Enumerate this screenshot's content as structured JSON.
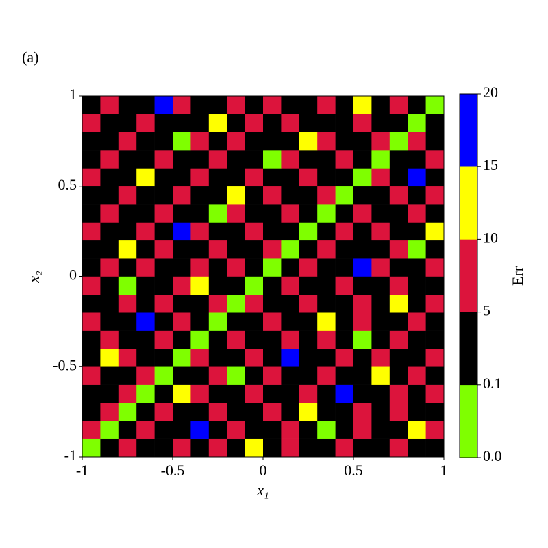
{
  "chart_data": {
    "type": "heatmap",
    "panel_label": "(a)",
    "xlabel": "x₁",
    "ylabel": "x₂",
    "xlim": [
      -1,
      1
    ],
    "ylim": [
      -1,
      1
    ],
    "xticks": [
      -1,
      -0.5,
      0,
      0.5,
      1
    ],
    "yticks": [
      -1,
      -0.5,
      0,
      0.5,
      1
    ],
    "z": [
      [
        0.05,
        2.5,
        7.5,
        2.5,
        2.5,
        7.5,
        2.5,
        7.5,
        2.5,
        12.5,
        2.5,
        7.5,
        2.5,
        2.5,
        7.5,
        2.5,
        2.5,
        7.5,
        2.5,
        2.5
      ],
      [
        7.5,
        0.05,
        2.5,
        7.5,
        2.5,
        2.5,
        17.5,
        2.5,
        7.5,
        2.5,
        2.5,
        7.5,
        2.5,
        0.05,
        2.5,
        7.5,
        2.5,
        2.5,
        12.5,
        7.5
      ],
      [
        2.5,
        7.5,
        0.05,
        2.5,
        7.5,
        2.5,
        2.5,
        7.5,
        2.5,
        2.5,
        7.5,
        2.5,
        12.5,
        2.5,
        2.5,
        7.5,
        2.5,
        7.5,
        2.5,
        2.5
      ],
      [
        2.5,
        2.5,
        7.5,
        0.05,
        2.5,
        12.5,
        7.5,
        2.5,
        2.5,
        7.5,
        2.5,
        2.5,
        7.5,
        2.5,
        17.5,
        2.5,
        2.5,
        7.5,
        2.5,
        7.5
      ],
      [
        7.5,
        2.5,
        2.5,
        7.5,
        0.05,
        2.5,
        2.5,
        7.5,
        0.05,
        2.5,
        7.5,
        2.5,
        2.5,
        7.5,
        2.5,
        2.5,
        12.5,
        2.5,
        7.5,
        2.5
      ],
      [
        2.5,
        12.5,
        7.5,
        2.5,
        2.5,
        0.05,
        7.5,
        2.5,
        2.5,
        7.5,
        2.5,
        17.5,
        2.5,
        2.5,
        7.5,
        2.5,
        7.5,
        2.5,
        2.5,
        7.5
      ],
      [
        2.5,
        7.5,
        2.5,
        2.5,
        7.5,
        2.5,
        0.05,
        2.5,
        7.5,
        2.5,
        2.5,
        7.5,
        2.5,
        7.5,
        2.5,
        0.05,
        2.5,
        7.5,
        2.5,
        2.5
      ],
      [
        7.5,
        2.5,
        2.5,
        17.5,
        2.5,
        7.5,
        2.5,
        0.05,
        2.5,
        2.5,
        7.5,
        2.5,
        2.5,
        12.5,
        2.5,
        7.5,
        2.5,
        2.5,
        7.5,
        2.5
      ],
      [
        2.5,
        2.5,
        7.5,
        2.5,
        7.5,
        2.5,
        2.5,
        7.5,
        0.05,
        7.5,
        2.5,
        2.5,
        7.5,
        2.5,
        2.5,
        7.5,
        2.5,
        12.5,
        2.5,
        7.5
      ],
      [
        7.5,
        2.5,
        0.05,
        2.5,
        2.5,
        7.5,
        12.5,
        2.5,
        2.5,
        0.05,
        2.5,
        7.5,
        2.5,
        2.5,
        7.5,
        2.5,
        2.5,
        7.5,
        2.5,
        2.5
      ],
      [
        2.5,
        7.5,
        2.5,
        7.5,
        2.5,
        2.5,
        7.5,
        2.5,
        7.5,
        2.5,
        0.05,
        2.5,
        7.5,
        2.5,
        2.5,
        17.5,
        7.5,
        2.5,
        2.5,
        7.5
      ],
      [
        2.5,
        2.5,
        12.5,
        2.5,
        7.5,
        2.5,
        2.5,
        7.5,
        2.5,
        2.5,
        7.5,
        0.05,
        2.5,
        7.5,
        2.5,
        2.5,
        2.5,
        7.5,
        0.05,
        2.5
      ],
      [
        7.5,
        2.5,
        2.5,
        7.5,
        2.5,
        17.5,
        7.5,
        2.5,
        2.5,
        7.5,
        2.5,
        2.5,
        0.05,
        2.5,
        7.5,
        2.5,
        7.5,
        2.5,
        2.5,
        12.5
      ],
      [
        2.5,
        7.5,
        2.5,
        2.5,
        7.5,
        2.5,
        2.5,
        0.05,
        7.5,
        2.5,
        2.5,
        7.5,
        2.5,
        0.05,
        2.5,
        7.5,
        2.5,
        2.5,
        7.5,
        2.5
      ],
      [
        2.5,
        2.5,
        7.5,
        2.5,
        2.5,
        7.5,
        2.5,
        2.5,
        12.5,
        2.5,
        7.5,
        2.5,
        2.5,
        7.5,
        0.05,
        2.5,
        2.5,
        7.5,
        2.5,
        7.5
      ],
      [
        7.5,
        2.5,
        2.5,
        12.5,
        2.5,
        2.5,
        7.5,
        2.5,
        2.5,
        7.5,
        2.5,
        2.5,
        7.5,
        2.5,
        2.5,
        0.05,
        7.5,
        2.5,
        17.5,
        2.5
      ],
      [
        2.5,
        7.5,
        2.5,
        2.5,
        7.5,
        2.5,
        2.5,
        7.5,
        2.5,
        2.5,
        0.05,
        7.5,
        2.5,
        2.5,
        7.5,
        2.5,
        0.05,
        2.5,
        2.5,
        7.5
      ],
      [
        2.5,
        2.5,
        7.5,
        2.5,
        2.5,
        0.05,
        7.5,
        2.5,
        7.5,
        2.5,
        2.5,
        2.5,
        12.5,
        7.5,
        2.5,
        2.5,
        7.5,
        0.05,
        7.5,
        2.5
      ],
      [
        7.5,
        2.5,
        2.5,
        7.5,
        2.5,
        2.5,
        2.5,
        12.5,
        2.5,
        7.5,
        2.5,
        7.5,
        2.5,
        2.5,
        2.5,
        7.5,
        2.5,
        2.5,
        0.05,
        2.5
      ],
      [
        2.5,
        7.5,
        2.5,
        2.5,
        17.5,
        7.5,
        2.5,
        2.5,
        7.5,
        2.5,
        7.5,
        2.5,
        2.5,
        7.5,
        2.5,
        12.5,
        2.5,
        7.5,
        2.5,
        0.05
      ]
    ],
    "colorbar": {
      "label": "Err",
      "bounds": [
        {
          "value": 0,
          "label": "0.0"
        },
        0.1,
        5,
        10,
        15,
        20
      ],
      "colors": [
        "#7fff00",
        "#000000",
        "#dc143c",
        "#ffff00",
        "#0000ff"
      ]
    }
  }
}
